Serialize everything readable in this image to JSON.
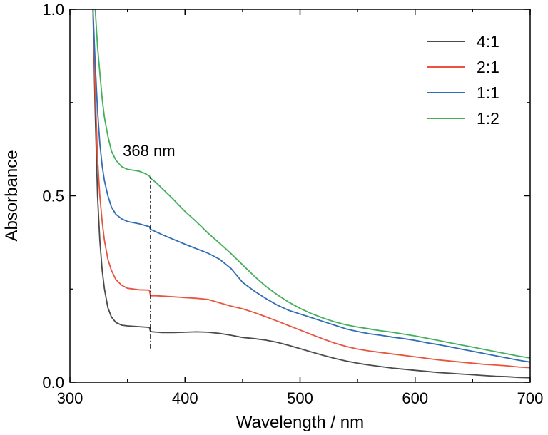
{
  "chart_data": {
    "type": "line",
    "xlabel": "Wavelength / nm",
    "ylabel": "Absorbance",
    "xlim": [
      300,
      700
    ],
    "ylim": [
      0.0,
      1.0
    ],
    "xticks": [
      300,
      400,
      500,
      600,
      700
    ],
    "xtick_labels": [
      "300",
      "400",
      "500",
      "600",
      "700"
    ],
    "xminor": [
      350,
      450,
      550,
      650
    ],
    "yticks": [
      0.0,
      0.5,
      1.0
    ],
    "ytick_labels": [
      "0.0",
      "0.5",
      "1.0"
    ],
    "yminor": [
      0.25,
      0.75
    ],
    "grid": false,
    "legend_position": "top-right",
    "annotation": {
      "text": "368 nm",
      "x": 370,
      "y_range": [
        0.09,
        0.55
      ]
    },
    "series": [
      {
        "name": "4:1",
        "color": "#4a4a4a",
        "points": [
          [
            320,
            1.0
          ],
          [
            322,
            0.72
          ],
          [
            324,
            0.5
          ],
          [
            326,
            0.38
          ],
          [
            328,
            0.3
          ],
          [
            330,
            0.25
          ],
          [
            333,
            0.2
          ],
          [
            336,
            0.175
          ],
          [
            340,
            0.16
          ],
          [
            345,
            0.153
          ],
          [
            350,
            0.151
          ],
          [
            360,
            0.149
          ],
          [
            369,
            0.147
          ],
          [
            370,
            0.136
          ],
          [
            372,
            0.135
          ],
          [
            380,
            0.133
          ],
          [
            390,
            0.133
          ],
          [
            400,
            0.134
          ],
          [
            410,
            0.135
          ],
          [
            420,
            0.134
          ],
          [
            430,
            0.131
          ],
          [
            440,
            0.126
          ],
          [
            450,
            0.12
          ],
          [
            460,
            0.117
          ],
          [
            470,
            0.113
          ],
          [
            480,
            0.107
          ],
          [
            490,
            0.099
          ],
          [
            500,
            0.09
          ],
          [
            510,
            0.081
          ],
          [
            520,
            0.072
          ],
          [
            530,
            0.064
          ],
          [
            540,
            0.057
          ],
          [
            550,
            0.051
          ],
          [
            560,
            0.046
          ],
          [
            570,
            0.042
          ],
          [
            580,
            0.038
          ],
          [
            590,
            0.035
          ],
          [
            600,
            0.032
          ],
          [
            610,
            0.029
          ],
          [
            620,
            0.026
          ],
          [
            630,
            0.024
          ],
          [
            640,
            0.022
          ],
          [
            650,
            0.02
          ],
          [
            660,
            0.018
          ],
          [
            670,
            0.016
          ],
          [
            680,
            0.015
          ],
          [
            690,
            0.013
          ],
          [
            700,
            0.012
          ]
        ]
      },
      {
        "name": "2:1",
        "color": "#e8553e",
        "points": [
          [
            320,
            1.0
          ],
          [
            322,
            0.78
          ],
          [
            324,
            0.6
          ],
          [
            326,
            0.5
          ],
          [
            328,
            0.43
          ],
          [
            330,
            0.38
          ],
          [
            333,
            0.33
          ],
          [
            336,
            0.3
          ],
          [
            340,
            0.275
          ],
          [
            345,
            0.26
          ],
          [
            350,
            0.252
          ],
          [
            360,
            0.248
          ],
          [
            369,
            0.247
          ],
          [
            370,
            0.232
          ],
          [
            375,
            0.232
          ],
          [
            380,
            0.231
          ],
          [
            390,
            0.229
          ],
          [
            400,
            0.227
          ],
          [
            410,
            0.225
          ],
          [
            420,
            0.222
          ],
          [
            430,
            0.213
          ],
          [
            440,
            0.204
          ],
          [
            450,
            0.197
          ],
          [
            460,
            0.187
          ],
          [
            470,
            0.176
          ],
          [
            480,
            0.164
          ],
          [
            490,
            0.152
          ],
          [
            500,
            0.14
          ],
          [
            510,
            0.128
          ],
          [
            520,
            0.116
          ],
          [
            530,
            0.105
          ],
          [
            540,
            0.096
          ],
          [
            550,
            0.089
          ],
          [
            560,
            0.084
          ],
          [
            570,
            0.08
          ],
          [
            580,
            0.076
          ],
          [
            590,
            0.072
          ],
          [
            600,
            0.068
          ],
          [
            610,
            0.064
          ],
          [
            620,
            0.06
          ],
          [
            630,
            0.057
          ],
          [
            640,
            0.054
          ],
          [
            650,
            0.051
          ],
          [
            660,
            0.048
          ],
          [
            670,
            0.046
          ],
          [
            680,
            0.044
          ],
          [
            690,
            0.041
          ],
          [
            700,
            0.039
          ]
        ]
      },
      {
        "name": "1:1",
        "color": "#2f6db5",
        "points": [
          [
            320,
            1.0
          ],
          [
            322,
            0.85
          ],
          [
            324,
            0.73
          ],
          [
            326,
            0.64
          ],
          [
            328,
            0.58
          ],
          [
            330,
            0.54
          ],
          [
            333,
            0.5
          ],
          [
            336,
            0.47
          ],
          [
            340,
            0.45
          ],
          [
            345,
            0.438
          ],
          [
            350,
            0.431
          ],
          [
            360,
            0.425
          ],
          [
            369,
            0.417
          ],
          [
            370,
            0.41
          ],
          [
            375,
            0.403
          ],
          [
            380,
            0.396
          ],
          [
            390,
            0.383
          ],
          [
            400,
            0.37
          ],
          [
            410,
            0.358
          ],
          [
            420,
            0.346
          ],
          [
            430,
            0.33
          ],
          [
            440,
            0.305
          ],
          [
            450,
            0.268
          ],
          [
            460,
            0.245
          ],
          [
            470,
            0.225
          ],
          [
            480,
            0.207
          ],
          [
            490,
            0.193
          ],
          [
            500,
            0.183
          ],
          [
            510,
            0.173
          ],
          [
            520,
            0.163
          ],
          [
            530,
            0.153
          ],
          [
            540,
            0.143
          ],
          [
            550,
            0.136
          ],
          [
            560,
            0.13
          ],
          [
            570,
            0.126
          ],
          [
            580,
            0.121
          ],
          [
            590,
            0.117
          ],
          [
            600,
            0.112
          ],
          [
            610,
            0.106
          ],
          [
            620,
            0.101
          ],
          [
            630,
            0.095
          ],
          [
            640,
            0.089
          ],
          [
            650,
            0.083
          ],
          [
            660,
            0.077
          ],
          [
            670,
            0.071
          ],
          [
            680,
            0.065
          ],
          [
            690,
            0.059
          ],
          [
            700,
            0.054
          ]
        ]
      },
      {
        "name": "1:2",
        "color": "#43b05c",
        "points": [
          [
            322,
            1.0
          ],
          [
            324,
            0.9
          ],
          [
            326,
            0.83
          ],
          [
            328,
            0.76
          ],
          [
            330,
            0.71
          ],
          [
            333,
            0.66
          ],
          [
            336,
            0.62
          ],
          [
            340,
            0.595
          ],
          [
            345,
            0.578
          ],
          [
            350,
            0.571
          ],
          [
            360,
            0.566
          ],
          [
            365,
            0.56
          ],
          [
            369,
            0.553
          ],
          [
            370,
            0.547
          ],
          [
            375,
            0.535
          ],
          [
            380,
            0.52
          ],
          [
            390,
            0.49
          ],
          [
            400,
            0.458
          ],
          [
            410,
            0.43
          ],
          [
            420,
            0.4
          ],
          [
            430,
            0.373
          ],
          [
            440,
            0.345
          ],
          [
            450,
            0.315
          ],
          [
            460,
            0.285
          ],
          [
            470,
            0.258
          ],
          [
            480,
            0.235
          ],
          [
            490,
            0.215
          ],
          [
            500,
            0.198
          ],
          [
            510,
            0.184
          ],
          [
            520,
            0.172
          ],
          [
            530,
            0.162
          ],
          [
            540,
            0.154
          ],
          [
            550,
            0.148
          ],
          [
            560,
            0.143
          ],
          [
            570,
            0.138
          ],
          [
            580,
            0.134
          ],
          [
            590,
            0.129
          ],
          [
            600,
            0.124
          ],
          [
            610,
            0.118
          ],
          [
            620,
            0.112
          ],
          [
            630,
            0.106
          ],
          [
            640,
            0.1
          ],
          [
            650,
            0.094
          ],
          [
            660,
            0.088
          ],
          [
            670,
            0.082
          ],
          [
            680,
            0.076
          ],
          [
            690,
            0.07
          ],
          [
            700,
            0.065
          ]
        ]
      }
    ]
  }
}
